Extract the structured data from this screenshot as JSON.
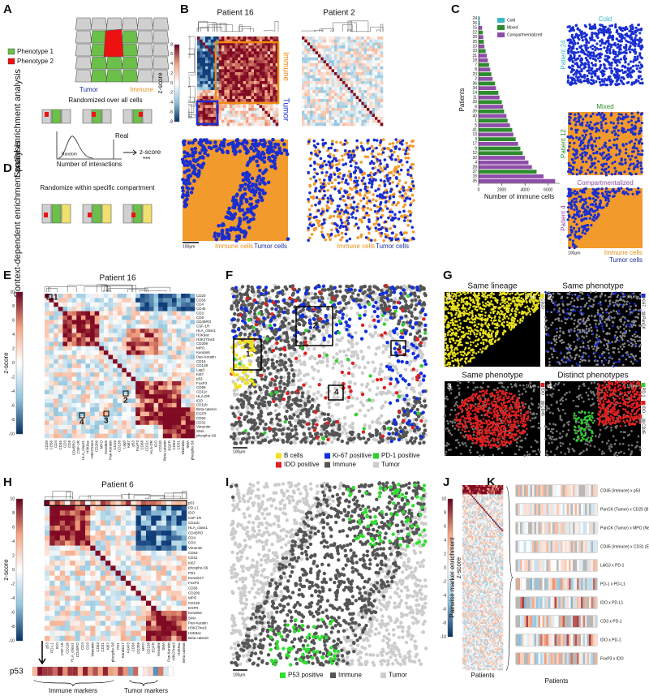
{
  "panel_letters": [
    "A",
    "B",
    "C",
    "D",
    "E",
    "F",
    "G",
    "H",
    "I",
    "J",
    "K"
  ],
  "a": {
    "legend": [
      "Phenotype 1",
      "Phenotype 2"
    ],
    "tumor": "Tumor",
    "immune": "Immune",
    "randomized": "Randomized over all cells",
    "section": "Spatial enrichment analysis",
    "random": "Random",
    "real": "Real",
    "xlabel": "Number of interactions",
    "arrow_label": "z-score",
    "stars": "***"
  },
  "b": {
    "titles": [
      "Patient 16",
      "Patient 2"
    ],
    "immune": "Immune",
    "tumor": "Tumor",
    "colorbar_label": "z-score",
    "colorbar_ticks": [
      8,
      6,
      4,
      2,
      0,
      -2,
      -4,
      -6,
      -8
    ],
    "scale_bar": "100μm",
    "legend": [
      "Immune cells",
      "Tumor cells"
    ]
  },
  "d": {
    "section": "Context-dependent enrichment analysis",
    "note": "Randomize within specific compartment"
  },
  "c_images": {
    "titles": [
      "Cold",
      "Mixed",
      "Compartmentalized"
    ],
    "patients": [
      "Patient 24",
      "Patient 12",
      "Patient 4"
    ],
    "scale_bar": "100μm",
    "legend": [
      "Immune cells",
      "Tumor cells"
    ]
  },
  "chart_data": {
    "type": "bar",
    "orientation": "horizontal",
    "ylabel": "Patients",
    "xlabel": "Number of immune cells",
    "categories": [
      "24",
      "26",
      "15",
      "22",
      "20",
      "25",
      "10",
      "33",
      "31",
      "18",
      "7",
      "8",
      "23",
      "2",
      "36",
      "34",
      "14",
      "11",
      "29",
      "6",
      "39",
      "40",
      "1",
      "5",
      "41",
      "13",
      "3",
      "17",
      "9",
      "12",
      "32",
      "4",
      "28",
      "37",
      "16",
      "35"
    ],
    "values": [
      100,
      120,
      300,
      350,
      400,
      450,
      500,
      600,
      700,
      800,
      900,
      1000,
      1100,
      1200,
      1400,
      1500,
      1700,
      1800,
      2000,
      2100,
      2200,
      2400,
      2500,
      2700,
      2900,
      3000,
      3200,
      3400,
      3600,
      3800,
      4000,
      4300,
      4600,
      5000,
      5600,
      6600
    ],
    "colors": [
      "#3bb8c8",
      "#3bb8c8",
      "#8e4ea8",
      "#2e8b2e",
      "#8e4ea8",
      "#2e8b2e",
      "#8e4ea8",
      "#2e8b2e",
      "#8e4ea8",
      "#8e4ea8",
      "#2e8b2e",
      "#8e4ea8",
      "#2e8b2e",
      "#8e4ea8",
      "#2e8b2e",
      "#8e4ea8",
      "#2e8b2e",
      "#8e4ea8",
      "#2e8b2e",
      "#8e4ea8",
      "#2e8b2e",
      "#8e4ea8",
      "#2e8b2e",
      "#8e4ea8",
      "#2e8b2e",
      "#8e4ea8",
      "#2e8b2e",
      "#8e4ea8",
      "#2e8b2e",
      "#2e8b2e",
      "#8e4ea8",
      "#8e4ea8",
      "#8e4ea8",
      "#2e8b2e",
      "#8e4ea8",
      "#8e4ea8"
    ],
    "legend": [
      {
        "name": "Cold",
        "color": "#3bb8c8"
      },
      {
        "name": "Mixed",
        "color": "#2e8b2e"
      },
      {
        "name": "Compartmentalized",
        "color": "#8e4ea8"
      }
    ],
    "xlim": [
      0,
      7000
    ],
    "xticks": [
      0,
      2000,
      4000,
      6000
    ]
  },
  "e": {
    "title": "Patient 16",
    "colorbar_label": "z-score",
    "colorbar_ticks": [
      10,
      8,
      6,
      4,
      2,
      0,
      -2,
      -4,
      -6,
      -8,
      -10
    ],
    "rows": [
      "CD20",
      "CD56",
      "CD4",
      "CD45",
      "CD3",
      "CD8",
      "CD45RO",
      "CSF-1R",
      "HLA_class1",
      "H3K9ac",
      "H3K27me3",
      "CD209",
      "MPO",
      "Keratin6",
      "Pan-Keratin",
      "CD16",
      "CD138",
      "Lag3",
      "Ki67",
      "p53",
      "FoxP3",
      "CD68",
      "CD11c",
      "HLA-DR",
      "IDO",
      "CD11b",
      "Beta catenin",
      "EGFR",
      "CD63",
      "CD31",
      "Vimentin",
      "SMA",
      "phospho-S6"
    ],
    "callouts": [
      "1",
      "2",
      "3",
      "4"
    ]
  },
  "f": {
    "scale_bar": "100μm",
    "legend": [
      {
        "name": "B cells",
        "color": "#f0e020"
      },
      {
        "name": "Ki-67 positive",
        "color": "#1030e0"
      },
      {
        "name": "PD-1 positive",
        "color": "#30d030"
      },
      {
        "name": "IDO positive",
        "color": "#e02020"
      },
      {
        "name": "Immune",
        "color": "#555555"
      },
      {
        "name": "Tumor",
        "color": "#cccccc"
      }
    ],
    "callouts": [
      "1",
      "2",
      "3",
      "4"
    ]
  },
  "g": {
    "tiles": [
      {
        "number": "1",
        "title": "Same lineage",
        "scale": "20μm",
        "markers": [
          "CD20"
        ]
      },
      {
        "number": "2",
        "title": "Same phenotype",
        "scale": "30μm",
        "markers": [
          "Ki67",
          "PanCK"
        ]
      },
      {
        "number": "3",
        "title": "Same phenotype",
        "scale": "10μm",
        "markers": [
          "IDO",
          "CD45"
        ]
      },
      {
        "number": "4",
        "title": "Distinct phenotypes",
        "scale": "10μm",
        "markers": [
          "PD-1",
          "IDO",
          "CD45"
        ]
      }
    ]
  },
  "h": {
    "title": "Patient 6",
    "colorbar_label": "z-score",
    "colorbar_ticks": [
      10,
      8,
      6,
      4,
      2,
      0,
      -2,
      -4,
      -6,
      -8,
      -10
    ],
    "rows": [
      "p53",
      "PD-L1",
      "IDO",
      "CSF-1R",
      "CD11b",
      "HLA_class1",
      "CD45RO",
      "CD4",
      "CD3",
      "Vimentin",
      "CD63",
      "CD31",
      "Ki67",
      "phospho-S6",
      "PD1",
      "Keratin17",
      "FoxP3",
      "CD56",
      "CD209",
      "MPO",
      "CD138",
      "EGFR",
      "Keratin6",
      "SMA",
      "Pan-Keratin",
      "H3K27me3",
      "H3K9ac",
      "Beta catenin"
    ],
    "bottom_label": "p53",
    "groups": [
      "Immune markers",
      "Tumor markers"
    ]
  },
  "i": {
    "scale_bar": "100μm",
    "legend": [
      {
        "name": "P53 positive",
        "color": "#30e030"
      },
      {
        "name": "Immune",
        "color": "#555555"
      },
      {
        "name": "Tumor",
        "color": "#cccccc"
      }
    ]
  },
  "j": {
    "ylabel": "Pairwise marker enrichment",
    "colorbar_label": "z-score",
    "colorbar_ticks": [
      10,
      8,
      6,
      4,
      2,
      0,
      -2,
      -4,
      -6,
      -8,
      -10
    ],
    "xlabel": "Patients"
  },
  "k": {
    "rows": [
      "CD45 (Immune) x p53",
      "PanCK (Tumor) x CD20 (B cells)",
      "PanCK (Tumor) x MPO (Neutrophils)",
      "CD45 (Immune) x CD31 (Endothelium)",
      "LAG3 x PD-1",
      "PD-1 x PD-L1",
      "IDO x PD-L1",
      "CD3 x PD-1",
      "IDO x PD-1",
      "FoxP3 x IDO"
    ],
    "xlabel": "Patients"
  }
}
